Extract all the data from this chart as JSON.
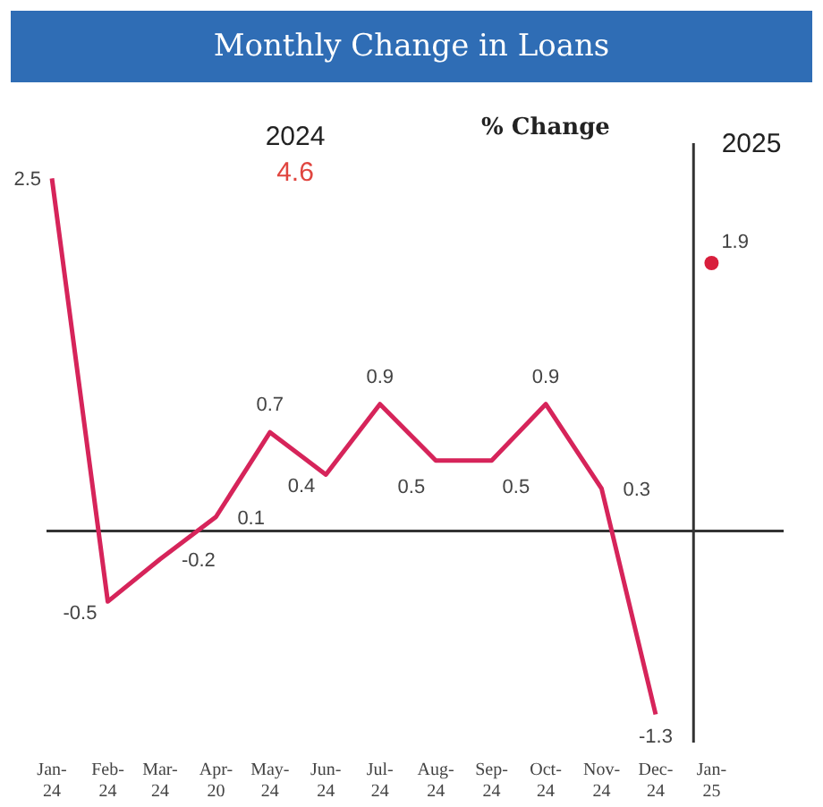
{
  "chart_data": {
    "type": "line",
    "title": "Monthly Change in Loans",
    "subtitle": "% Change",
    "annotations": [
      "2024",
      "4.6",
      "2025"
    ],
    "x": [
      "2024-01",
      "2024-02",
      "2024-03",
      "2024-04",
      "2024-05",
      "2024-06",
      "2024-07",
      "2024-08",
      "2024-09",
      "2024-10",
      "2024-11",
      "2024-12"
    ],
    "series": [
      {
        "color": "#d6245a",
        "values": [
          2.5,
          -0.5,
          -0.2,
          0.1,
          0.7,
          0.4,
          0.9,
          0.5,
          0.5,
          0.9,
          0.3,
          -1.3
        ]
      },
      {
        "type": "scatter",
        "marker": "circle",
        "color": "#d81e3c",
        "x": [
          "2025-01"
        ],
        "values": [
          1.9
        ]
      }
    ],
    "xlim": [
      "2023-12-29",
      "2025-02-10"
    ],
    "xticks": [
      {
        "value": "2024-01",
        "label": "Jan-24"
      },
      {
        "value": "2024-02",
        "label": "Feb-24"
      },
      {
        "value": "2024-03",
        "label": "Mar-24"
      },
      {
        "value": "2024-04",
        "label": "Apr-20"
      },
      {
        "value": "2024-05",
        "label": "May-24"
      },
      {
        "value": "2024-06",
        "label": "Jun-24"
      },
      {
        "value": "2024-07",
        "label": "Jul-24"
      },
      {
        "value": "2024-08",
        "label": "Aug-24"
      },
      {
        "value": "2024-09",
        "label": "Sep-24"
      },
      {
        "value": "2024-10",
        "label": "Oct-24"
      },
      {
        "value": "2024-11",
        "label": "Nov-24"
      },
      {
        "value": "2024-12",
        "label": "Dec-24"
      },
      {
        "value": "2025-01",
        "label": "Jan-25"
      }
    ],
    "ylim": [
      -1.5,
      2.75
    ],
    "tick_labels": "x",
    "ref_lines": [
      {
        "axis": "y",
        "value": 0,
        "color": "#333333"
      },
      {
        "axis": "x",
        "value": "2024-12-22",
        "color": "#333333"
      }
    ],
    "data_labels": true,
    "grid": false,
    "legend": false,
    "marker": "none",
    "line_style": "solid"
  }
}
